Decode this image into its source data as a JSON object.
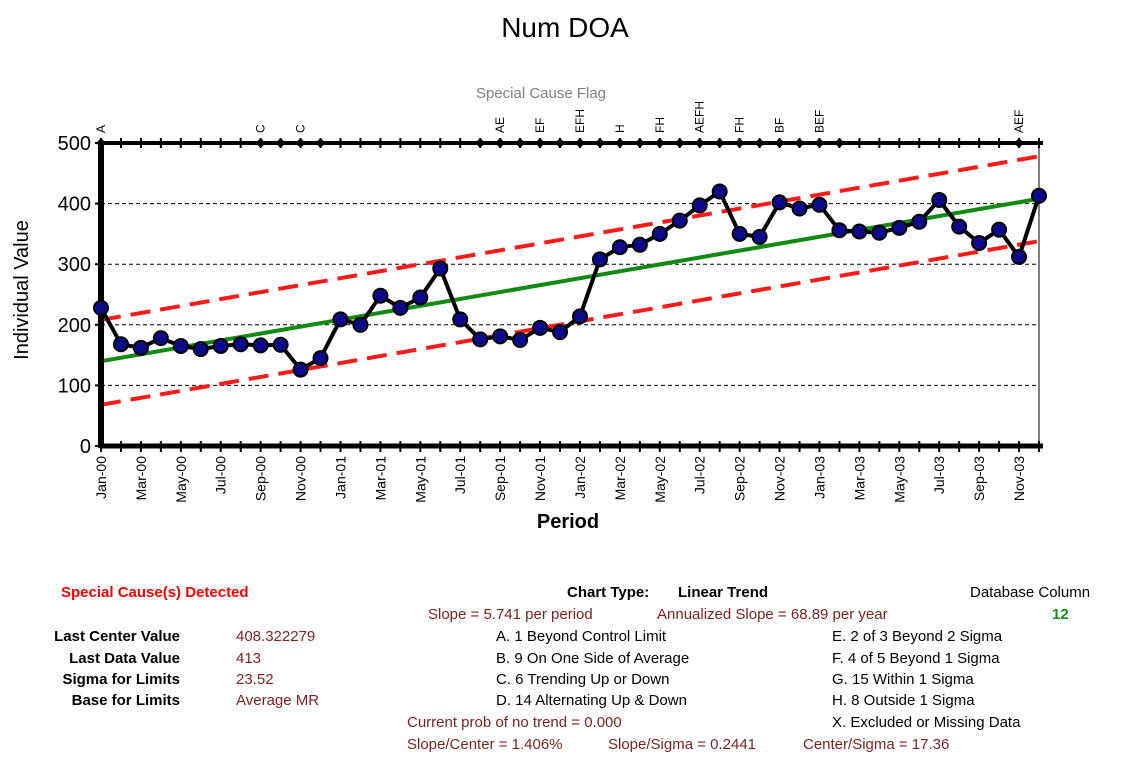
{
  "chart_data": {
    "type": "line",
    "title": "Num DOA",
    "flag_title": "Special Cause Flag",
    "xlabel": "Period",
    "ylabel": "Individual Value",
    "ylim": [
      0,
      500
    ],
    "yticks": [
      0,
      100,
      200,
      300,
      400,
      500
    ],
    "gridlines": [
      100,
      200,
      300,
      400
    ],
    "x_tick_labels": [
      "Jan-00",
      "Mar-00",
      "May-00",
      "Jul-00",
      "Sep-00",
      "Nov-00",
      "Jan-01",
      "Mar-01",
      "May-01",
      "Jul-01",
      "Sep-01",
      "Nov-01",
      "Jan-02",
      "Mar-02",
      "May-02",
      "Jul-02",
      "Sep-02",
      "Nov-02",
      "Jan-03",
      "Mar-03",
      "May-03",
      "Jul-03",
      "Sep-03",
      "Nov-03"
    ],
    "series": [
      {
        "values": [
          228,
          168,
          162,
          178,
          165,
          160,
          165,
          168,
          166,
          167,
          126,
          145,
          209,
          200,
          248,
          228,
          245,
          293,
          209,
          176,
          181,
          175,
          195,
          188,
          214,
          308,
          328,
          332,
          350,
          372,
          397,
          420,
          350,
          345,
          402,
          392,
          398,
          356,
          354,
          352,
          360,
          370,
          406,
          362,
          335,
          357,
          312,
          413
        ]
      }
    ],
    "center_line": {
      "start": 140,
      "end": 408
    },
    "ucl": {
      "start": 208,
      "end": 478
    },
    "lcl": {
      "start": 68,
      "end": 338
    },
    "flags": [
      {
        "index": 0,
        "label": "A"
      },
      {
        "index": 8,
        "label": "C"
      },
      {
        "index": 10,
        "label": "C"
      },
      {
        "index": 20,
        "label": "AE"
      },
      {
        "index": 22,
        "label": "EF"
      },
      {
        "index": 24,
        "label": "EFH"
      },
      {
        "index": 26,
        "label": "H"
      },
      {
        "index": 28,
        "label": "FH"
      },
      {
        "index": 30,
        "label": "AEFH"
      },
      {
        "index": 32,
        "label": "FH"
      },
      {
        "index": 34,
        "label": "BF"
      },
      {
        "index": 36,
        "label": "BEF"
      },
      {
        "index": 46,
        "label": "AEF"
      }
    ],
    "flag_markers": [
      0,
      8,
      9,
      10,
      11,
      19,
      20,
      21,
      22,
      23,
      24,
      25,
      26,
      27,
      28,
      29,
      30,
      31,
      32,
      33,
      34,
      35,
      36,
      37,
      46
    ],
    "colors": {
      "data": "#000000",
      "marker": "#0a0a8a",
      "center": "#108a10",
      "limits": "#ff1a1a",
      "flag_title": "#808080"
    }
  },
  "info": {
    "special_cause": "Special Cause(s) Detected",
    "chart_type_label": "Chart Type:",
    "chart_type_value": "Linear Trend",
    "database_column_label": "Database Column",
    "database_column_value": "12",
    "slope": "Slope = 5.741 per period",
    "annualized_slope": "Annualized Slope = 68.89 per year",
    "stats": [
      {
        "label": "Last Center Value",
        "value": "408.322279"
      },
      {
        "label": "Last Data Value",
        "value": "413"
      },
      {
        "label": "Sigma for Limits",
        "value": "23.52"
      },
      {
        "label": "Base for Limits",
        "value": "Average MR"
      }
    ],
    "rules_left": [
      "A.  1 Beyond Control Limit",
      "B.  9 On One Side of Average",
      "C.  6 Trending Up or Down",
      "D.  14 Alternating  Up & Down"
    ],
    "rules_right": [
      "E.   2 of 3 Beyond 2 Sigma",
      "F.   4 of 5 Beyond 1 Sigma",
      "G.  15 Within 1 Sigma",
      "H.   8 Outside 1 Sigma",
      "X.   Excluded or Missing Data"
    ],
    "trend_prob": "Current prob of no trend = 0.000",
    "slope_center": "Slope/Center = 1.406%",
    "slope_sigma": "Slope/Sigma = 0.2441",
    "center_sigma": "Center/Sigma = 17.36"
  }
}
